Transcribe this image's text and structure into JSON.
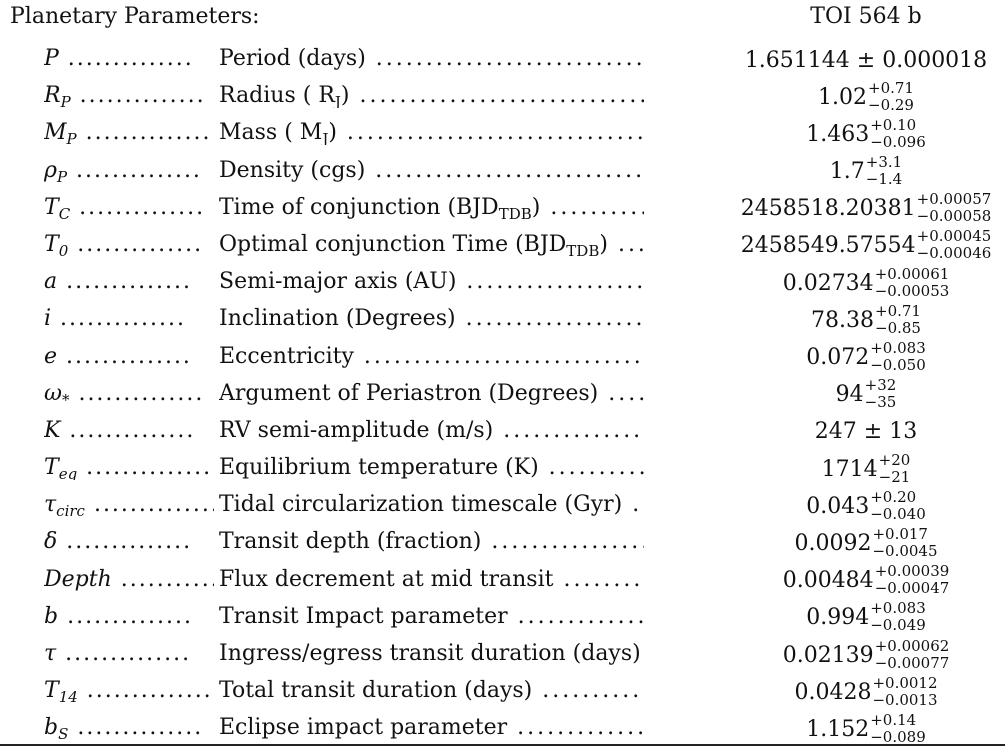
{
  "header": {
    "title": "Planetary Parameters:",
    "column": "TOI 564 b"
  },
  "rows": [
    {
      "sym": "P",
      "sub": "",
      "desc": "Period (days)",
      "desc_sub": "",
      "desc_tail": "",
      "value": "1.651144 ± 0.000018",
      "plus": "",
      "minus": ""
    },
    {
      "sym": "R",
      "sub": "P",
      "desc": "Radius ( R",
      "desc_sub": "J",
      "desc_tail": ")",
      "value": "1.02",
      "plus": "+0.71",
      "minus": "−0.29"
    },
    {
      "sym": "M",
      "sub": "P",
      "desc": "Mass ( M",
      "desc_sub": "J",
      "desc_tail": ")",
      "value": "1.463",
      "plus": "+0.10",
      "minus": "−0.096"
    },
    {
      "sym": "ρ",
      "sub": "P",
      "desc": "Density (cgs)",
      "desc_sub": "",
      "desc_tail": "",
      "value": "1.7",
      "plus": "+3.1",
      "minus": "−1.4"
    },
    {
      "sym": "T",
      "sub": "C",
      "desc": "Time of conjunction (BJD",
      "desc_sub": "TDB",
      "desc_tail": ")",
      "value": "2458518.20381",
      "plus": "+0.00057",
      "minus": "−0.00058"
    },
    {
      "sym": "T",
      "sub": "0",
      "desc": "Optimal conjunction Time (BJD",
      "desc_sub": "TDB",
      "desc_tail": ")",
      "value": "2458549.57554",
      "plus": "+0.00045",
      "minus": "−0.00046"
    },
    {
      "sym": "a",
      "sub": "",
      "desc": "Semi-major axis (AU)",
      "desc_sub": "",
      "desc_tail": "",
      "value": "0.02734",
      "plus": "+0.00061",
      "minus": "−0.00053"
    },
    {
      "sym": "i",
      "sub": "",
      "desc": "Inclination (Degrees)",
      "desc_sub": "",
      "desc_tail": "",
      "value": "78.38",
      "plus": "+0.71",
      "minus": "−0.85"
    },
    {
      "sym": "e",
      "sub": "",
      "desc": "Eccentricity",
      "desc_sub": "",
      "desc_tail": "",
      "value": "0.072",
      "plus": "+0.083",
      "minus": "−0.050"
    },
    {
      "sym": "ω",
      "sub": "*",
      "desc": "Argument of Periastron (Degrees)",
      "desc_sub": "",
      "desc_tail": "",
      "value": "94",
      "plus": "+32",
      "minus": "−35"
    },
    {
      "sym": "K",
      "sub": "",
      "desc": "RV semi-amplitude (m/s)",
      "desc_sub": "",
      "desc_tail": "",
      "value": "247 ± 13",
      "plus": "",
      "minus": ""
    },
    {
      "sym": "T",
      "sub": "eq",
      "desc": "Equilibrium temperature (K)",
      "desc_sub": "",
      "desc_tail": "",
      "value": "1714",
      "plus": "+20",
      "minus": "−21"
    },
    {
      "sym": "τ",
      "sub": "circ",
      "desc": "Tidal circularization timescale (Gyr)",
      "desc_sub": "",
      "desc_tail": "",
      "value": "0.043",
      "plus": "+0.20",
      "minus": "−0.040"
    },
    {
      "sym": "δ",
      "sub": "",
      "desc": "Transit depth (fraction)",
      "desc_sub": "",
      "desc_tail": "",
      "value": "0.0092",
      "plus": "+0.017",
      "minus": "−0.0045"
    },
    {
      "sym": "Depth",
      "sub": "",
      "desc": "Flux decrement at mid transit",
      "desc_sub": "",
      "desc_tail": "",
      "value": "0.00484",
      "plus": "+0.00039",
      "minus": "−0.00047"
    },
    {
      "sym": "b",
      "sub": "",
      "desc": "Transit Impact parameter",
      "desc_sub": "",
      "desc_tail": "",
      "value": "0.994",
      "plus": "+0.083",
      "minus": "−0.049"
    },
    {
      "sym": "τ",
      "sub": "",
      "desc": "Ingress/egress transit duration (days)",
      "desc_sub": "",
      "desc_tail": "",
      "value": "0.02139",
      "plus": "+0.00062",
      "minus": "−0.00077"
    },
    {
      "sym": "T",
      "sub": "14",
      "desc": "Total transit duration (days)",
      "desc_sub": "",
      "desc_tail": "",
      "value": "0.0428",
      "plus": "+0.0012",
      "minus": "−0.0013"
    },
    {
      "sym": "b",
      "sub": "S",
      "desc": "Eclipse impact parameter",
      "desc_sub": "",
      "desc_tail": "",
      "value": "1.152",
      "plus": "+0.14",
      "minus": "−0.089"
    }
  ]
}
